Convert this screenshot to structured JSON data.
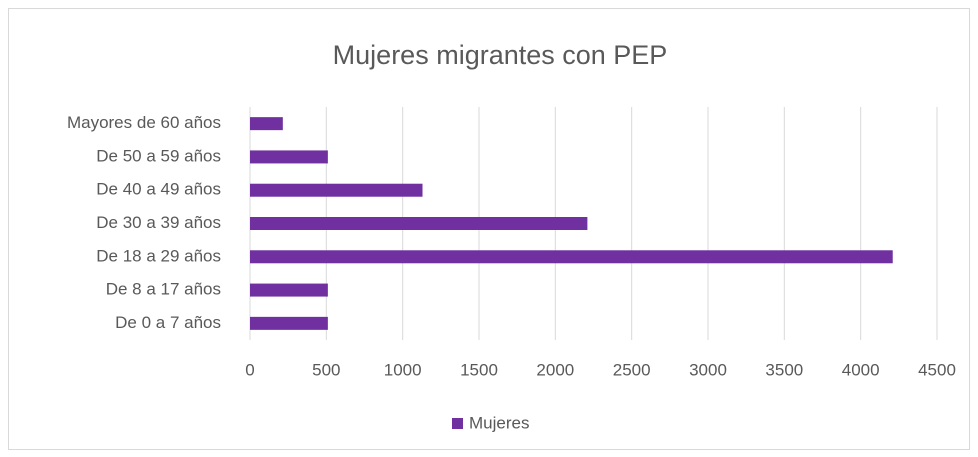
{
  "chart_data": {
    "type": "bar",
    "orientation": "horizontal",
    "title": "Mujeres migrantes con PEP",
    "categories": [
      "Mayores de 60 años",
      "De 50 a 59 años",
      "De 40 a 49 años",
      "De 30 a 39 años",
      "De 18 a 29 años",
      "De 8 a 17 años",
      "De 0 a 7 años"
    ],
    "series": [
      {
        "name": "Mujeres",
        "color": "#7030a0",
        "values": [
          215,
          510,
          1130,
          2210,
          4210,
          510,
          510
        ]
      }
    ],
    "xlim": [
      0,
      4500
    ],
    "xticks": [
      0,
      500,
      1000,
      1500,
      2000,
      2500,
      3000,
      3500,
      4000,
      4500
    ],
    "grid": true,
    "legend": "bottom"
  }
}
